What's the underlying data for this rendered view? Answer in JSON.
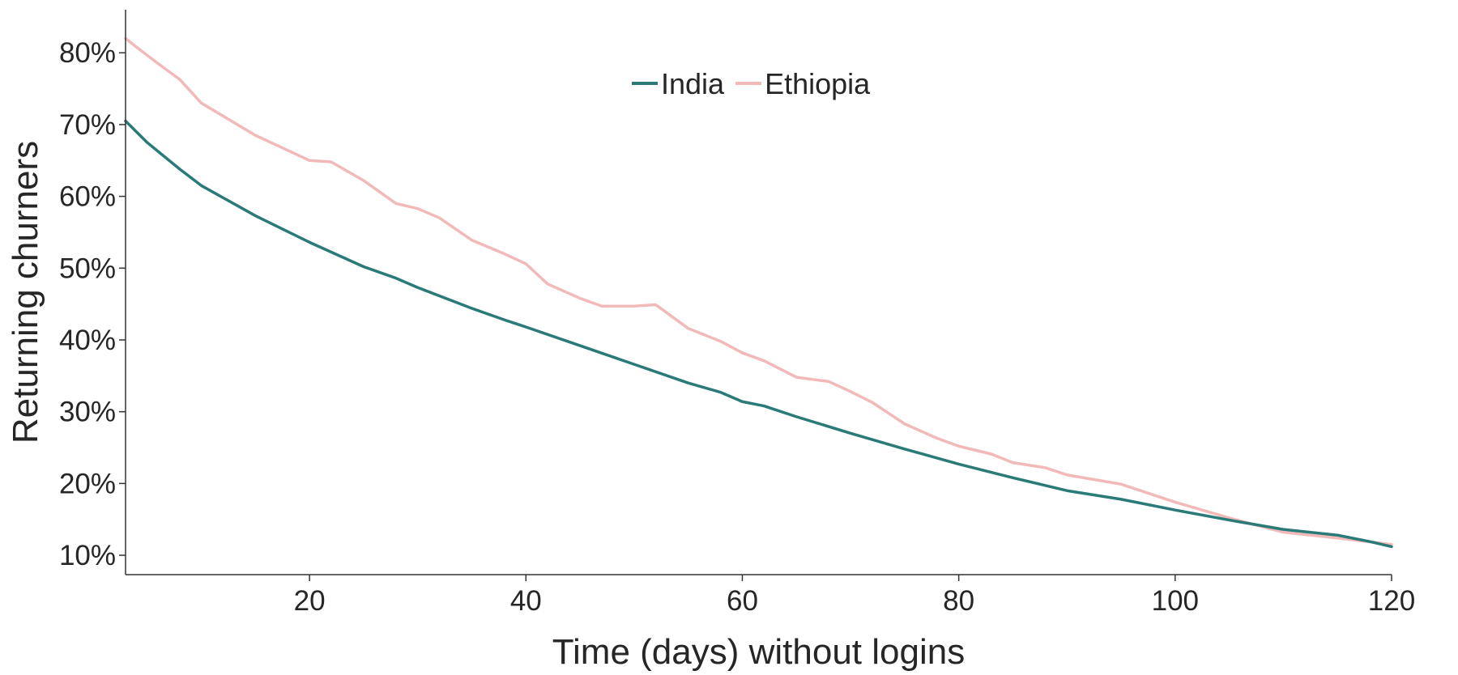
{
  "chart_data": {
    "type": "line",
    "title": "",
    "xlabel": "Time (days) without logins",
    "ylabel": "Returning churners",
    "xlim": [
      3,
      120
    ],
    "ylim": [
      7.3,
      86
    ],
    "x_ticks": [
      20,
      40,
      60,
      80,
      100,
      120
    ],
    "x_tick_labels": [
      "20",
      "40",
      "60",
      "80",
      "100",
      "120"
    ],
    "y_ticks": [
      10,
      20,
      30,
      40,
      50,
      60,
      70,
      80
    ],
    "y_tick_labels": [
      "10%",
      "20%",
      "30%",
      "40%",
      "50%",
      "60%",
      "70%",
      "80%"
    ],
    "grid": false,
    "legend": {
      "position": "top-center",
      "orientation": "horizontal"
    },
    "series": [
      {
        "name": "India",
        "color": "#2a7a78",
        "x": [
          3,
          5,
          8,
          10,
          15,
          20,
          25,
          28,
          30,
          35,
          38,
          40,
          45,
          50,
          55,
          58,
          60,
          62,
          65,
          70,
          75,
          80,
          85,
          90,
          95,
          100,
          105,
          110,
          115,
          118,
          120
        ],
        "y": [
          70.5,
          67.5,
          63.8,
          61.5,
          57.3,
          53.6,
          50.2,
          48.6,
          47.3,
          44.4,
          42.8,
          41.8,
          39.2,
          36.6,
          34.0,
          32.7,
          31.4,
          30.8,
          29.3,
          27.0,
          24.8,
          22.7,
          20.8,
          19.0,
          17.8,
          16.3,
          14.9,
          13.6,
          12.8,
          11.9,
          11.2
        ]
      },
      {
        "name": "Ethiopia",
        "color": "#f2b9b9",
        "x": [
          3,
          4,
          6,
          8,
          10,
          12,
          15,
          18,
          20,
          22,
          25,
          28,
          30,
          32,
          35,
          38,
          40,
          42,
          45,
          47,
          50,
          52,
          55,
          58,
          60,
          62,
          65,
          68,
          70,
          72,
          75,
          78,
          80,
          83,
          85,
          88,
          90,
          95,
          100,
          105,
          110,
          115,
          120
        ],
        "y": [
          82.0,
          80.8,
          78.5,
          76.3,
          73.0,
          71.2,
          68.5,
          66.4,
          65.0,
          64.8,
          62.2,
          59.0,
          58.3,
          57.0,
          53.9,
          52.0,
          50.6,
          47.8,
          45.8,
          44.7,
          44.7,
          44.9,
          41.6,
          39.8,
          38.2,
          37.1,
          34.8,
          34.2,
          32.8,
          31.3,
          28.3,
          26.3,
          25.2,
          24.1,
          22.9,
          22.2,
          21.2,
          19.9,
          17.4,
          15.2,
          13.2,
          12.4,
          11.5
        ]
      }
    ]
  }
}
